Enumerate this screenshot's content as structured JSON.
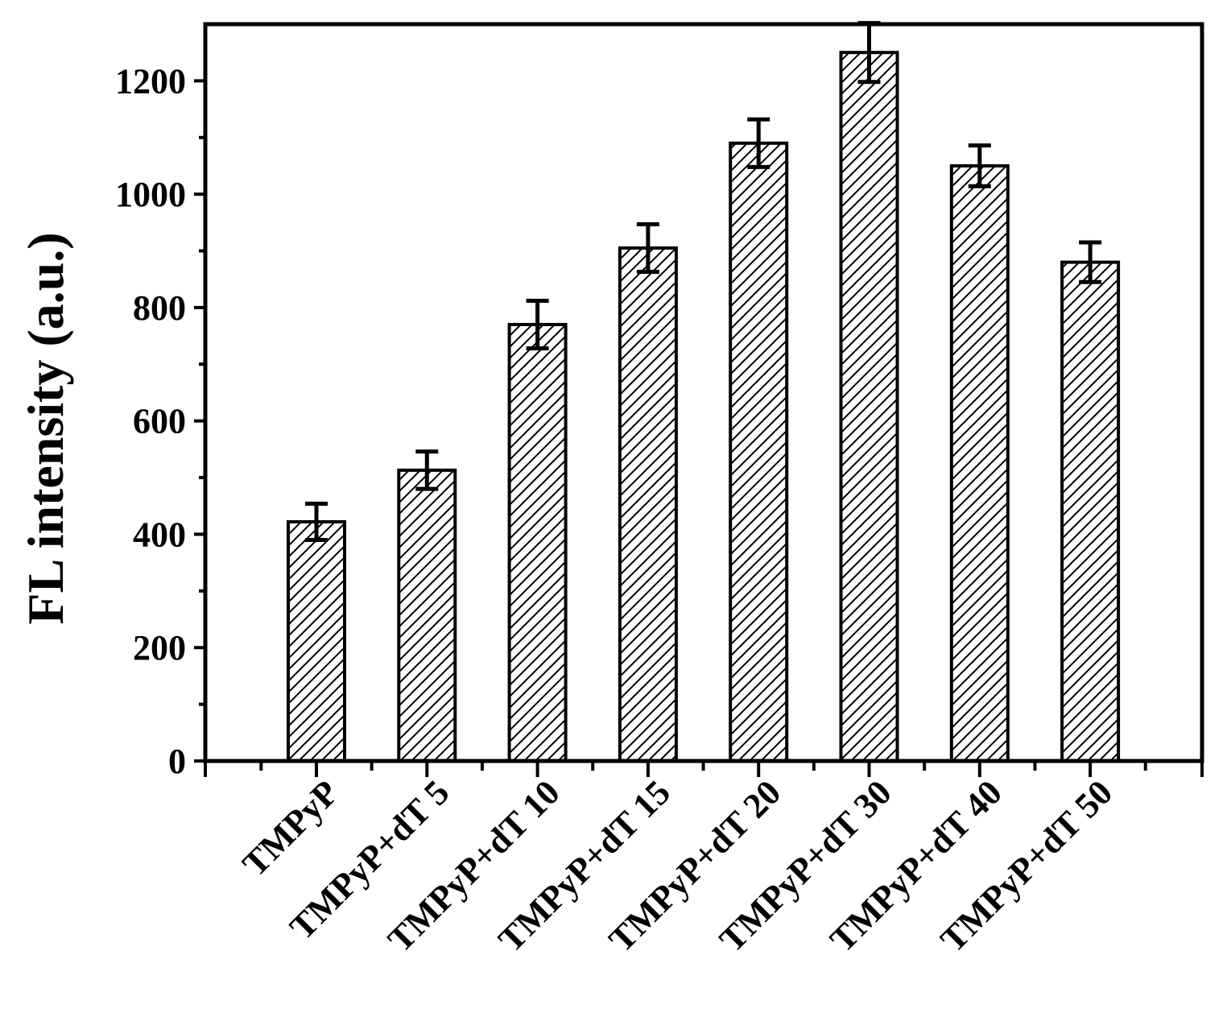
{
  "chart_data": {
    "type": "bar",
    "title": "",
    "xlabel": "",
    "ylabel": "FL intensity (a.u.)",
    "categories": [
      "TMPyP",
      "TMPyP+dT 5",
      "TMPyP+dT 10",
      "TMPyP+dT 15",
      "TMPyP+dT 20",
      "TMPyP+dT 30",
      "TMPyP+dT 40",
      "TMPyP+dT 50"
    ],
    "values": [
      422,
      513,
      770,
      905,
      1090,
      1250,
      1050,
      880
    ],
    "errors": [
      32,
      33,
      42,
      42,
      42,
      52,
      36,
      35
    ],
    "ylim": [
      0,
      1300
    ],
    "yticks": [
      0,
      200,
      400,
      600,
      800,
      1000,
      1200
    ],
    "bar_fill": "hatched",
    "colors": {
      "stroke": "#000000",
      "background": "#ffffff"
    },
    "grid": false,
    "legend": "none"
  }
}
